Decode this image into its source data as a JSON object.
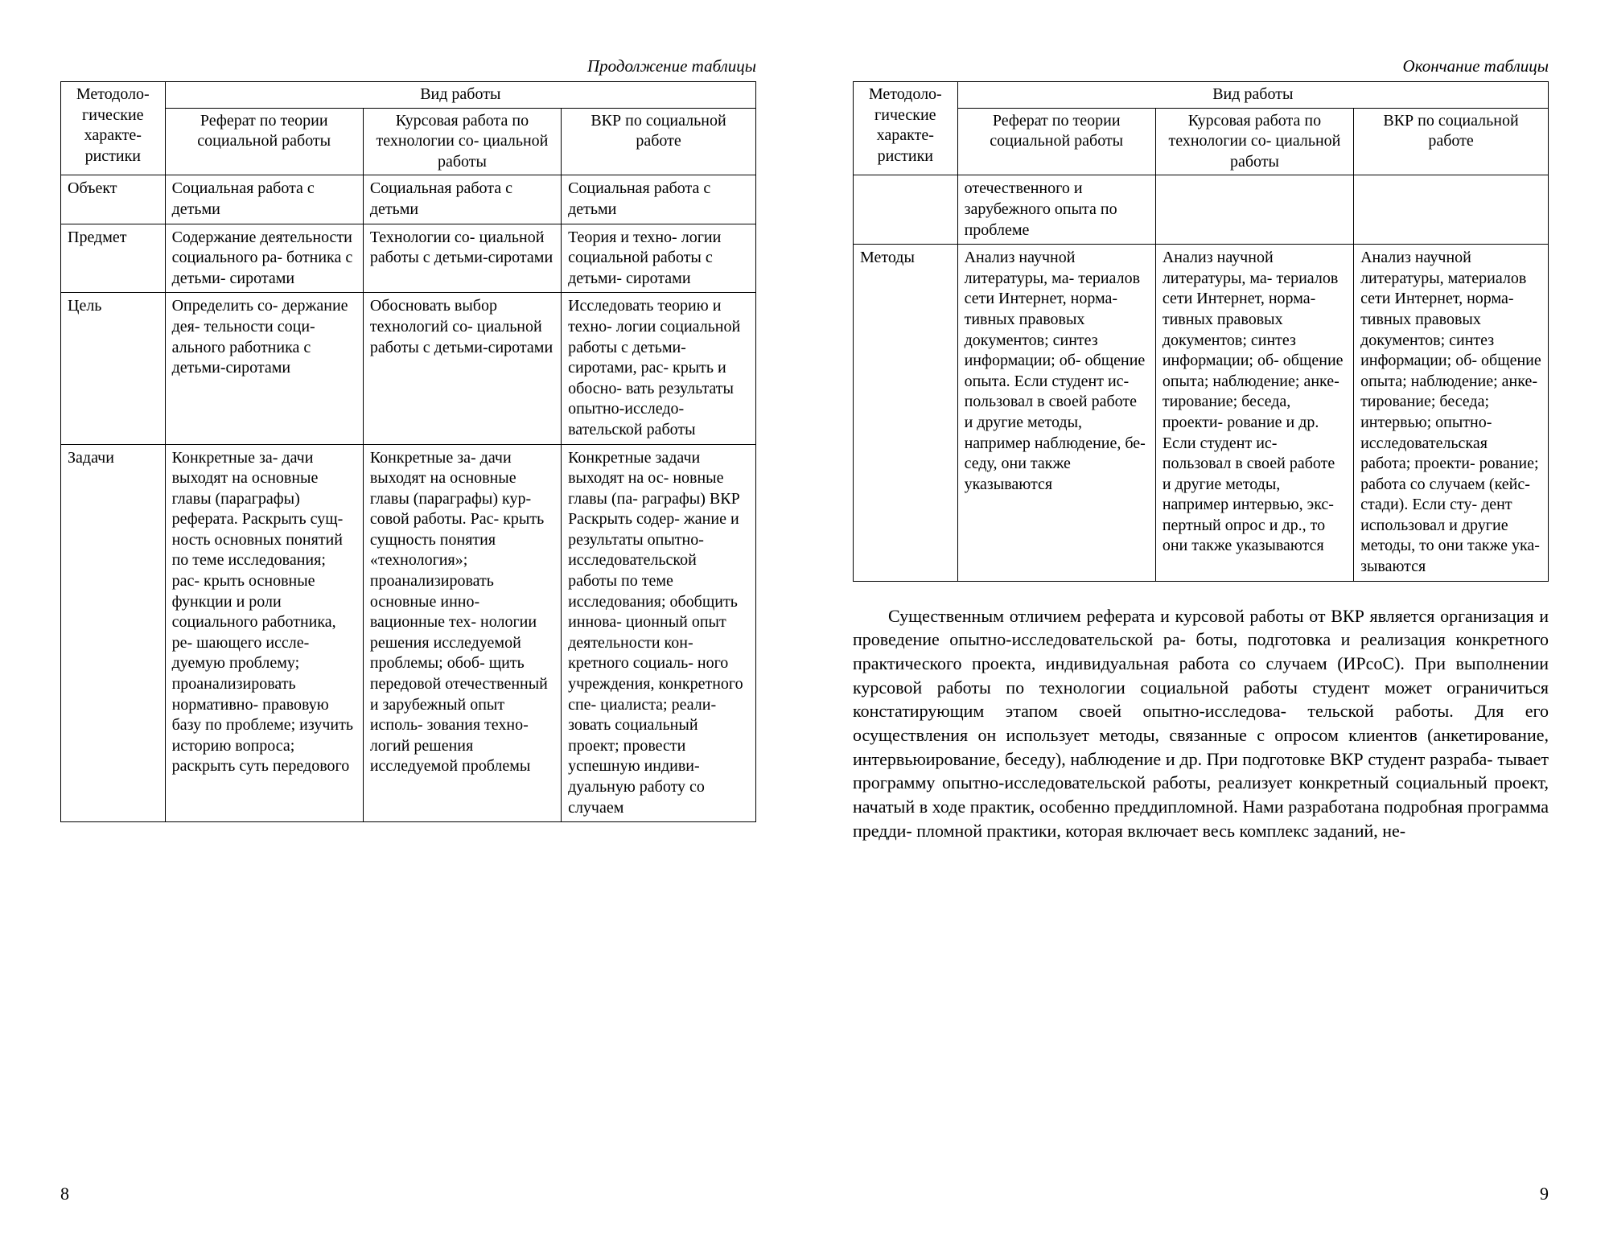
{
  "left": {
    "caption": "Продолжение таблицы",
    "header_rowspan": "Методоло-\nгические характе-\nристики",
    "header_colspan": "Вид работы",
    "sub_headers": [
      "Реферат по теории социальной работы",
      "Курсовая работа по технологии со-\nциальной работы",
      "ВКР\nпо социальной работе"
    ],
    "rows": [
      {
        "c0": "Объект",
        "c1": "Социальная работа с детьми",
        "c2": "Социальная работа с детьми",
        "c3": "Социальная работа с детьми"
      },
      {
        "c0": "Предмет",
        "c1": "Содержание деятельности социального ра-\nботника с детьми-\nсиротами",
        "c2": "Технологии со-\nциальной работы с детьми-сиротами",
        "c3": "Теория и техно-\nлогии социальной работы с детьми-\nсиротами"
      },
      {
        "c0": "Цель",
        "c1": "Определить со-\nдержание дея-\nтельности соци-\nального работника с детьми-сиротами",
        "c2": "Обосновать выбор технологий со-\nциальной работы с детьми-сиротами",
        "c3": "Исследовать теорию и техно-\nлогии социальной работы с детьми-\nсиротами, рас-\nкрыть и обосно-\nвать результаты опытно-исследо-\nвательской работы"
      },
      {
        "c0": "Задачи",
        "c1": "Конкретные за-\nдачи выходят на основные главы (параграфы) реферата.\nРаскрыть сущ-\nность основных понятий по теме исследования; рас-\nкрыть основные функции и роли социального работника, ре-\nшающего иссле-\nдуемую проблему; проанализировать нормативно-\nправовую базу по проблеме; изучить историю вопроса; раскрыть суть передового",
        "c2": "Конкретные за-\nдачи выходят на основные главы (параграфы) кур-\nсовой работы. Рас-\nкрыть сущность понятия «технология»; проанализировать основные инно-\nвационные тех-\nнологии решения исследуемой проблемы; обоб-\nщить передовой отечественный и зарубежный опыт исполь-\nзования техно-\nлогий решения исследуемой проблемы",
        "c3": "Конкретные задачи выходят на ос-\nновные главы (па-\nраграфы) ВКР\nРаскрыть содер-\nжание и результаты опытно-\nисследовательской работы по теме исследования; обобщить иннова-\nционный опыт деятельности кон-\nкретного социаль-\nного учреждения, конкретного спе-\nциалиста; реали-\nзовать социальный проект; провести успешную индиви-\nдуальную работу со случаем"
      }
    ],
    "page_number": "8"
  },
  "right": {
    "caption": "Окончание таблицы",
    "header_rowspan": "Методоло-\nгические характе-\nристики",
    "header_colspan": "Вид работы",
    "sub_headers": [
      "Реферат по теории социальной работы",
      "Курсовая работа по технологии со-\nциальной работы",
      "ВКР\nпо социальной работе"
    ],
    "rows": [
      {
        "c0": "",
        "c1": "отечественного и зарубежного опыта по проблеме",
        "c2": "",
        "c3": ""
      },
      {
        "c0": "Методы",
        "c1": "Анализ научной литературы, ма-\nтериалов сети Интернет, норма-\nтивных правовых документов; синтез информации; об-\nобщение опыта. Если студент ис-\nпользовал в своей работе и другие методы, например наблюдение, бе-\nседу, они также указываются",
        "c2": "Анализ научной литературы, ма-\nтериалов сети Интернет, норма-\nтивных правовых документов; синтез информации; об-\nобщение опыта; наблюдение; анке-\nтирование; беседа, проекти-\nрование и др. Если студент ис-\nпользовал в своей работе и другие методы, например интервью, экс-\nпертный опрос и др., то они также указываются",
        "c3": "Анализ научной литературы, материалов сети Интернет, норма-\nтивных правовых документов; синтез информации; об-\nобщение опыта; наблюдение; анке-\nтирование; беседа; интервью; опытно-\nисследовательская работа; проекти-\nрование; работа со случаем (кейс-\nстади). Если сту-\nдент использовал и другие методы, то они также ука-\nзываются"
      }
    ],
    "body_text": "Существенным отличием реферата и курсовой работы от ВКР является организация и проведение опытно-исследовательской ра-\nботы, подготовка и реализация конкретного практического проекта, индивидуальная работа со случаем (ИРсоС). При выполнении курсовой работы по технологии социальной работы студент может ограничиться констатирующим этапом своей опытно-исследова-\nтельской работы. Для его осуществления он использует методы, связанные с опросом клиентов (анкетирование, интервьюирование, беседу), наблюдение и др. При подготовке ВКР студент разраба-\nтывает программу опытно-исследовательской работы, реализует конкретный социальный проект, начатый в ходе практик, особенно преддипломной. Нами разработана подробная программа предди-\nпломной практики, которая включает весь комплекс заданий, не-",
    "page_number": "9"
  }
}
